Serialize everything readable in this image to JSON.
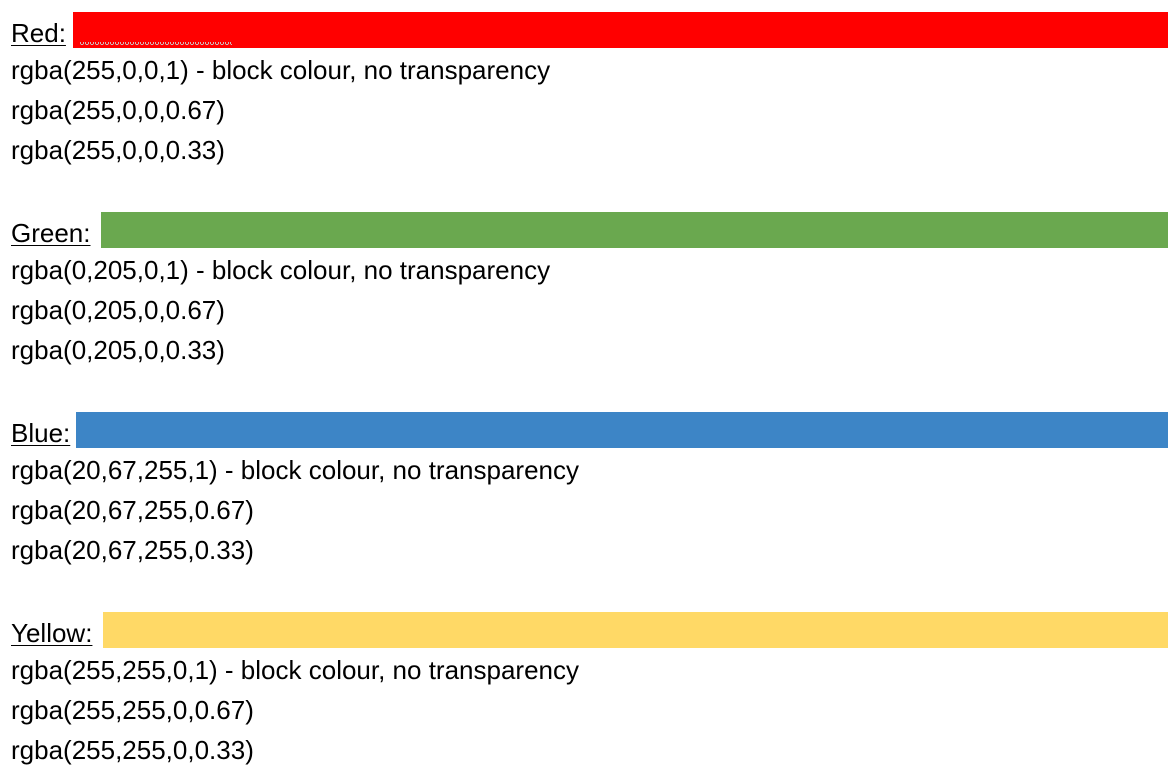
{
  "sections": [
    {
      "label": "Red:",
      "swatch_color": "#ff0000",
      "lines": [
        "rgba(255,0,0,1) - block colour, no transparency",
        "rgba(255,0,0,0.67)",
        "rgba(255,0,0,0.33)"
      ]
    },
    {
      "label": "Green:",
      "swatch_color": "#6aa84f",
      "lines": [
        "rgba(0,205,0,1) - block colour, no transparency",
        "rgba(0,205,0,0.67)",
        "rgba(0,205,0,0.33)"
      ]
    },
    {
      "label": "Blue:",
      "swatch_color": "#3d85c6",
      "lines": [
        "rgba(20,67,255,1) - block colour, no transparency",
        "rgba(20,67,255,0.67)",
        "rgba(20,67,255,0.33)"
      ]
    },
    {
      "label": "Yellow:",
      "swatch_color": "#ffd966",
      "lines": [
        "rgba(255,255,0,1) - block colour, no transparency",
        "rgba(255,255,0,0.67)",
        "rgba(255,255,0,0.33)"
      ]
    }
  ]
}
